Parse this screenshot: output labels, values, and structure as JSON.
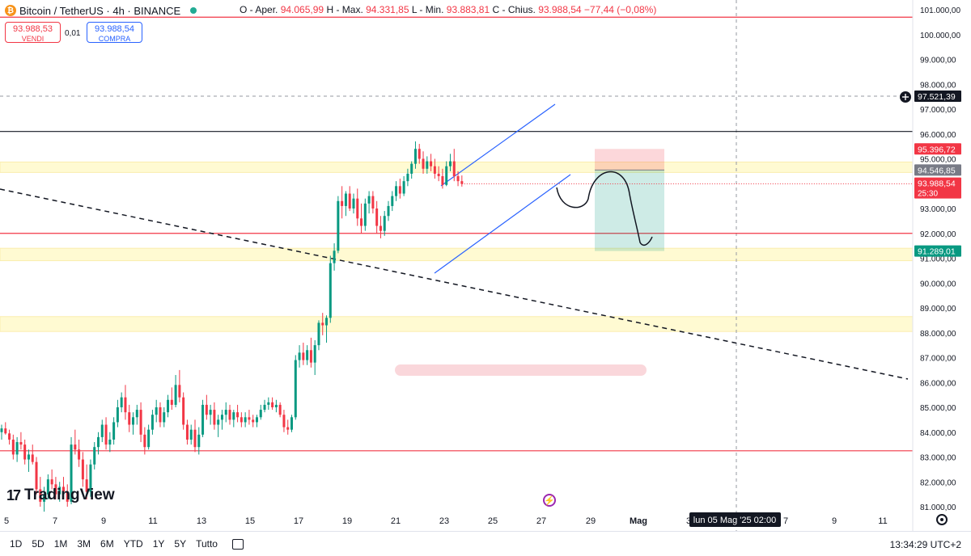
{
  "header": {
    "logo_text": "₿",
    "symbol": "Bitcoin / TetherUS · 4h · BINANCE",
    "ohlc": [
      {
        "label": "O - Aper.",
        "value": "94.065,99"
      },
      {
        "label": "H - Max.",
        "value": "94.331,85"
      },
      {
        "label": "L - Min.",
        "value": "93.883,81"
      },
      {
        "label": "C - Chius.",
        "value": "93.988,54"
      }
    ],
    "change": "−77,44 (−0,08%)"
  },
  "trade": {
    "sell_price": "93.988,53",
    "sell_label": "VENDI",
    "spread": "0,01",
    "buy_price": "93.988,54",
    "buy_label": "COMPRA"
  },
  "brand": {
    "mark": "17",
    "name": "TradingView"
  },
  "timeframes": [
    "1D",
    "5D",
    "1M",
    "3M",
    "6M",
    "YTD",
    "1Y",
    "5Y",
    "Tutto"
  ],
  "clock": "13:34:29 UTC+2",
  "crosshair_label": "lun 05 Mag '25   02:00",
  "colors": {
    "up": "#089981",
    "down": "#f23645",
    "accent": "#2962ff",
    "zone": "#fff59d"
  },
  "chart_data": {
    "type": "candlestick",
    "timeframe": "4h",
    "y_ticks": [
      "101.000,00",
      "100.000,00",
      "99.000,00",
      "98.000,00",
      "97.000,00",
      "96.000,00",
      "95.000,00",
      "94.000,00",
      "93.000,00",
      "92.000,00",
      "91.000,00",
      "90.000,00",
      "89.000,00",
      "88.000,00",
      "87.000,00",
      "86.000,00",
      "85.000,00",
      "84.000,00",
      "83.000,00",
      "82.000,00",
      "81.000,00"
    ],
    "y_tick_values": [
      101000,
      100000,
      99000,
      98000,
      97000,
      96000,
      95000,
      94000,
      93000,
      92000,
      91000,
      90000,
      89000,
      88000,
      87000,
      86000,
      85000,
      84000,
      83000,
      82000,
      81000
    ],
    "x_ticks": [
      "5",
      "7",
      "9",
      "11",
      "13",
      "15",
      "17",
      "19",
      "21",
      "23",
      "25",
      "27",
      "29",
      "Mag",
      "3",
      "5",
      "7",
      "9",
      "11"
    ],
    "price_labels": [
      {
        "value": 97521.39,
        "text": "97.521,39",
        "style": "crosshair"
      },
      {
        "value": 95396.72,
        "text": "95.396,72",
        "style": "red"
      },
      {
        "value": 94546.85,
        "text": "94.546,85",
        "style": "gray"
      },
      {
        "value": 93988.54,
        "text": "93.988,54",
        "sub": "25:30",
        "style": "current"
      },
      {
        "value": 91289.01,
        "text": "91.289,01",
        "style": "green"
      }
    ],
    "horizontal_lines": [
      {
        "value": 100700,
        "color": "#f23645"
      },
      {
        "value": 96100,
        "color": "#131722"
      },
      {
        "value": 92000,
        "color": "#f23645"
      },
      {
        "value": 83250,
        "color": "#f23645"
      }
    ],
    "zones": [
      {
        "from": 94450,
        "to": 94870
      },
      {
        "from": 90900,
        "to": 91400
      },
      {
        "from": 88050,
        "to": 88650
      }
    ],
    "position": {
      "entry": 94546.85,
      "stop": 95396.72,
      "target": 91289.01
    },
    "candles": [
      [
        84000,
        84300,
        83700,
        84150
      ],
      [
        84150,
        84400,
        83900,
        83950
      ],
      [
        83950,
        84100,
        83500,
        83700
      ],
      [
        83700,
        83900,
        82900,
        83100
      ],
      [
        83100,
        83800,
        82800,
        83600
      ],
      [
        83600,
        84000,
        83300,
        83500
      ],
      [
        83500,
        83700,
        82700,
        82900
      ],
      [
        82900,
        83300,
        82400,
        83100
      ],
      [
        83100,
        83500,
        82700,
        82800
      ],
      [
        82800,
        83000,
        81500,
        81700
      ],
      [
        81700,
        82200,
        81000,
        81200
      ],
      [
        81200,
        81800,
        80800,
        81500
      ],
      [
        81500,
        82300,
        81300,
        82100
      ],
      [
        82100,
        82500,
        81700,
        81900
      ],
      [
        81900,
        82200,
        81300,
        81500
      ],
      [
        81500,
        82000,
        81200,
        81800
      ],
      [
        81800,
        82200,
        81400,
        81600
      ],
      [
        81600,
        81900,
        81000,
        81200
      ],
      [
        81200,
        83800,
        81100,
        83500
      ],
      [
        83500,
        84100,
        83100,
        83300
      ],
      [
        83300,
        83700,
        82600,
        82900
      ],
      [
        82900,
        83200,
        81800,
        82100
      ],
      [
        82100,
        82700,
        81300,
        81600
      ],
      [
        81600,
        82900,
        81400,
        82700
      ],
      [
        82700,
        83600,
        82500,
        83400
      ],
      [
        83400,
        84000,
        83100,
        83800
      ],
      [
        83800,
        84500,
        83600,
        84300
      ],
      [
        84300,
        84600,
        83300,
        83500
      ],
      [
        83500,
        84000,
        83200,
        83700
      ],
      [
        83700,
        84600,
        83500,
        84400
      ],
      [
        84400,
        85300,
        84200,
        85000
      ],
      [
        85000,
        85600,
        84800,
        85400
      ],
      [
        85400,
        85900,
        84500,
        84800
      ],
      [
        84800,
        85100,
        84000,
        84300
      ],
      [
        84300,
        84800,
        83900,
        84600
      ],
      [
        84600,
        85100,
        84300,
        84900
      ],
      [
        84900,
        85200,
        83600,
        83900
      ],
      [
        83900,
        84200,
        83100,
        83400
      ],
      [
        83400,
        84300,
        83300,
        84100
      ],
      [
        84100,
        84900,
        83900,
        84700
      ],
      [
        84700,
        85300,
        84400,
        85000
      ],
      [
        85000,
        85200,
        84200,
        84400
      ],
      [
        84400,
        85000,
        84200,
        84800
      ],
      [
        84800,
        85500,
        84600,
        85300
      ],
      [
        85300,
        85800,
        84900,
        85100
      ],
      [
        85100,
        86300,
        85000,
        85900
      ],
      [
        85900,
        86500,
        85200,
        85400
      ],
      [
        85400,
        85600,
        84100,
        84300
      ],
      [
        84300,
        84500,
        83500,
        83700
      ],
      [
        83700,
        84300,
        83500,
        84100
      ],
      [
        84100,
        84500,
        83200,
        83400
      ],
      [
        83400,
        84200,
        83100,
        83900
      ],
      [
        83900,
        85300,
        83800,
        85100
      ],
      [
        85100,
        85500,
        84500,
        84700
      ],
      [
        84700,
        85100,
        84300,
        84900
      ],
      [
        84900,
        85200,
        84100,
        84300
      ],
      [
        84300,
        84700,
        83800,
        84500
      ],
      [
        84500,
        84900,
        84100,
        84700
      ],
      [
        84700,
        85200,
        84400,
        84900
      ],
      [
        84900,
        85100,
        84300,
        84500
      ],
      [
        84500,
        84900,
        84200,
        84800
      ],
      [
        84800,
        85100,
        84400,
        84600
      ],
      [
        84600,
        84800,
        84200,
        84400
      ],
      [
        84400,
        84800,
        84200,
        84600
      ],
      [
        84600,
        84900,
        84300,
        84500
      ],
      [
        84500,
        84700,
        84200,
        84400
      ],
      [
        84400,
        84700,
        84200,
        84600
      ],
      [
        84600,
        85100,
        84500,
        84900
      ],
      [
        84900,
        85300,
        84800,
        85100
      ],
      [
        85100,
        85400,
        84900,
        85200
      ],
      [
        85200,
        85400,
        84900,
        85000
      ],
      [
        85000,
        85300,
        84800,
        85100
      ],
      [
        85100,
        85200,
        84600,
        84700
      ],
      [
        84700,
        84900,
        84000,
        84200
      ],
      [
        84200,
        84500,
        83900,
        84100
      ],
      [
        84100,
        84700,
        84000,
        84600
      ],
      [
        84600,
        87100,
        84500,
        86900
      ],
      [
        86900,
        87500,
        86600,
        87200
      ],
      [
        87200,
        87600,
        86700,
        86900
      ],
      [
        86900,
        87500,
        86700,
        87300
      ],
      [
        87300,
        87800,
        86600,
        86800
      ],
      [
        86800,
        87700,
        86300,
        87500
      ],
      [
        87500,
        88500,
        87300,
        88400
      ],
      [
        88400,
        88800,
        87900,
        88300
      ],
      [
        88300,
        88700,
        87600,
        88600
      ],
      [
        88600,
        91100,
        88400,
        90800
      ],
      [
        90800,
        91600,
        90500,
        91300
      ],
      [
        91300,
        93500,
        91200,
        93300
      ],
      [
        93300,
        93900,
        92600,
        93100
      ],
      [
        93100,
        93700,
        92700,
        93600
      ],
      [
        93600,
        93900,
        92900,
        93000
      ],
      [
        93000,
        93600,
        92800,
        93400
      ],
      [
        93400,
        93800,
        92300,
        92600
      ],
      [
        92600,
        93200,
        92000,
        92300
      ],
      [
        92300,
        93400,
        92100,
        93200
      ],
      [
        93200,
        93700,
        92800,
        93500
      ],
      [
        93500,
        93700,
        92800,
        93000
      ],
      [
        93000,
        93300,
        92000,
        92300
      ],
      [
        92300,
        92700,
        91800,
        92100
      ],
      [
        92100,
        92900,
        91900,
        92700
      ],
      [
        92700,
        93300,
        92500,
        93100
      ],
      [
        93100,
        93700,
        92900,
        93500
      ],
      [
        93500,
        94100,
        93300,
        93900
      ],
      [
        93900,
        94200,
        93400,
        93600
      ],
      [
        93600,
        94300,
        93500,
        94100
      ],
      [
        94100,
        94600,
        93900,
        94400
      ],
      [
        94400,
        94900,
        94200,
        94800
      ],
      [
        94800,
        95700,
        94600,
        95400
      ],
      [
        95400,
        95600,
        94800,
        95000
      ],
      [
        95000,
        95300,
        94400,
        94600
      ],
      [
        94600,
        95100,
        94400,
        94900
      ],
      [
        94900,
        95200,
        94500,
        94700
      ],
      [
        94700,
        95000,
        94200,
        94400
      ],
      [
        94400,
        94700,
        94100,
        94300
      ],
      [
        94300,
        94600,
        93800,
        93950
      ],
      [
        93950,
        94900,
        93900,
        94700
      ],
      [
        94700,
        95200,
        94500,
        94900
      ],
      [
        94900,
        95400,
        94100,
        94300
      ],
      [
        94300,
        94500,
        93900,
        94100
      ],
      [
        94100,
        94330,
        93880,
        93990
      ]
    ]
  }
}
